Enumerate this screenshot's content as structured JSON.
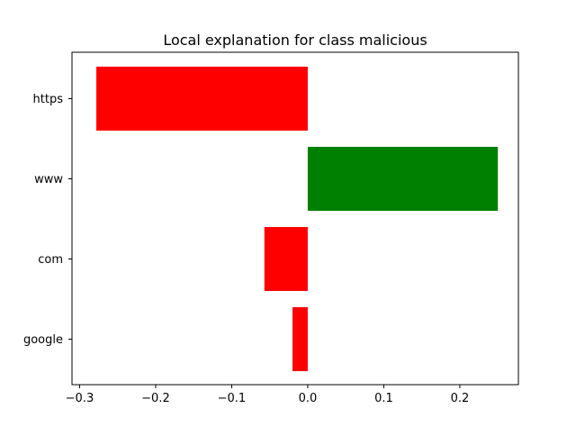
{
  "chart_data": {
    "type": "bar",
    "orientation": "horizontal",
    "title": "Local explanation for class malicious",
    "xlabel": "",
    "ylabel": "",
    "categories": [
      "https",
      "www",
      "com",
      "google"
    ],
    "values": [
      -0.278,
      0.25,
      -0.057,
      -0.02
    ],
    "bar_colors": [
      "#ff0000",
      "#008000",
      "#ff0000",
      "#ff0000"
    ],
    "xlim": [
      -0.31,
      0.277
    ],
    "xticks": [
      -0.3,
      -0.2,
      -0.1,
      0.0,
      0.1,
      0.2
    ],
    "xtick_labels": [
      "−0.3",
      "−0.2",
      "−0.1",
      "0.0",
      "0.1",
      "0.2"
    ],
    "grid": false,
    "legend": "none"
  }
}
